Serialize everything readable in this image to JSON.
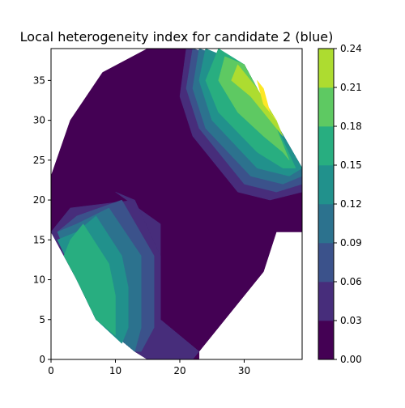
{
  "chart_data": {
    "type": "heatmap",
    "title": "Local heterogeneity index for candidate 2 (blue)",
    "xlabel": "",
    "ylabel": "",
    "xlim": [
      0,
      39
    ],
    "ylim": [
      0,
      39
    ],
    "x_ticks": [
      0,
      10,
      20,
      30
    ],
    "y_ticks": [
      0,
      5,
      10,
      15,
      20,
      25,
      30,
      35
    ],
    "grid": false,
    "colorbar": {
      "levels": [
        0.0,
        0.03,
        0.06,
        0.09,
        0.12,
        0.15,
        0.18,
        0.21,
        0.24
      ],
      "tick_labels": [
        "0.00",
        "0.03",
        "0.06",
        "0.09",
        "0.12",
        "0.15",
        "0.18",
        "0.21",
        "0.24"
      ],
      "colors": [
        "#440154",
        "#472d7b",
        "#3b528b",
        "#2c728e",
        "#21918c",
        "#28ae80",
        "#5ec962",
        "#addc30",
        "#fde725"
      ]
    },
    "domain_outline": [
      [
        15,
        0
      ],
      [
        23,
        0
      ],
      [
        23,
        1
      ],
      [
        33,
        11
      ],
      [
        35,
        16
      ],
      [
        39,
        16
      ],
      [
        39,
        24
      ],
      [
        34,
        31
      ],
      [
        30,
        37
      ],
      [
        22,
        39
      ],
      [
        15,
        39
      ],
      [
        8,
        36
      ],
      [
        3,
        30
      ],
      [
        0,
        23
      ],
      [
        0,
        16
      ],
      [
        4,
        10
      ],
      [
        7,
        5
      ],
      [
        13,
        1
      ]
    ],
    "regions": [
      {
        "level": 1,
        "points": [
          [
            10,
            21
          ],
          [
            17,
            17
          ],
          [
            17,
            10
          ],
          [
            17,
            4
          ],
          [
            16,
            0
          ],
          [
            21,
            0
          ],
          [
            23,
            1
          ],
          [
            17,
            5
          ],
          [
            17,
            10
          ],
          [
            17,
            13
          ],
          [
            13,
            20
          ]
        ]
      },
      {
        "level": 1,
        "points": [
          [
            13,
            20
          ],
          [
            17,
            13
          ],
          [
            17,
            10
          ],
          [
            17,
            5
          ],
          [
            23,
            1
          ],
          [
            22,
            0
          ],
          [
            15,
            0
          ],
          [
            13,
            1
          ],
          [
            7,
            5
          ],
          [
            4,
            10
          ],
          [
            0,
            16
          ],
          [
            1,
            17
          ],
          [
            3,
            19
          ]
        ]
      },
      {
        "level": 2,
        "points": [
          [
            11,
            20
          ],
          [
            16,
            13
          ],
          [
            16,
            9
          ],
          [
            16,
            4
          ],
          [
            14,
            1
          ],
          [
            13,
            1
          ],
          [
            7,
            5
          ],
          [
            4,
            10
          ],
          [
            1,
            16
          ],
          [
            4,
            18
          ]
        ]
      },
      {
        "level": 3,
        "points": [
          [
            9,
            19
          ],
          [
            14,
            13
          ],
          [
            14,
            9
          ],
          [
            14,
            4
          ],
          [
            13,
            1
          ],
          [
            7,
            5
          ],
          [
            4,
            10
          ],
          [
            1,
            16
          ],
          [
            4,
            17
          ]
        ]
      },
      {
        "level": 4,
        "points": [
          [
            7,
            18
          ],
          [
            11,
            13
          ],
          [
            12,
            9
          ],
          [
            12,
            4
          ],
          [
            11,
            2
          ],
          [
            7,
            5
          ],
          [
            4,
            10
          ],
          [
            1,
            15
          ],
          [
            4,
            16
          ]
        ]
      },
      {
        "level": 5,
        "points": [
          [
            5,
            17
          ],
          [
            9,
            12
          ],
          [
            10,
            8
          ],
          [
            10,
            3
          ],
          [
            7,
            5
          ],
          [
            4,
            10
          ],
          [
            2,
            13
          ],
          [
            3,
            15
          ]
        ]
      },
      {
        "level": 1,
        "points": [
          [
            21,
            39
          ],
          [
            20,
            33
          ],
          [
            22,
            28
          ],
          [
            29,
            21
          ],
          [
            34,
            20
          ],
          [
            39,
            21
          ],
          [
            39,
            24
          ],
          [
            34,
            31
          ],
          [
            30,
            37
          ],
          [
            22,
            39
          ]
        ]
      },
      {
        "level": 2,
        "points": [
          [
            22,
            39
          ],
          [
            21,
            34
          ],
          [
            23,
            29
          ],
          [
            30,
            22
          ],
          [
            35,
            21
          ],
          [
            39,
            22
          ],
          [
            39,
            24
          ],
          [
            34,
            31
          ],
          [
            30,
            37
          ]
        ]
      },
      {
        "level": 3,
        "points": [
          [
            23,
            39
          ],
          [
            22,
            34
          ],
          [
            24,
            29
          ],
          [
            31,
            23
          ],
          [
            36,
            22
          ],
          [
            39,
            23
          ],
          [
            39,
            24
          ],
          [
            34,
            31
          ],
          [
            30,
            37
          ]
        ]
      },
      {
        "level": 4,
        "points": [
          [
            24,
            39
          ],
          [
            23,
            35
          ],
          [
            25,
            30
          ],
          [
            32,
            24
          ],
          [
            37,
            23
          ],
          [
            39,
            24
          ],
          [
            34,
            31
          ],
          [
            30,
            37
          ]
        ]
      },
      {
        "level": 5,
        "points": [
          [
            26,
            39
          ],
          [
            24,
            35
          ],
          [
            26,
            31
          ],
          [
            32,
            26
          ],
          [
            36,
            24
          ],
          [
            38,
            24
          ],
          [
            34,
            31
          ],
          [
            30,
            37
          ]
        ]
      },
      {
        "level": 6,
        "points": [
          [
            27,
            38
          ],
          [
            26,
            35
          ],
          [
            29,
            31
          ],
          [
            33,
            28
          ],
          [
            36,
            26
          ],
          [
            37,
            25
          ],
          [
            34,
            31
          ],
          [
            30,
            37
          ]
        ]
      },
      {
        "level": 7,
        "points": [
          [
            29,
            37
          ],
          [
            28,
            35
          ],
          [
            31,
            33
          ],
          [
            34,
            30
          ],
          [
            36,
            28
          ],
          [
            35,
            30
          ],
          [
            32,
            34
          ]
        ]
      },
      {
        "level": 8,
        "points": [
          [
            32,
            35
          ],
          [
            33,
            32
          ],
          [
            35,
            30
          ],
          [
            34,
            31
          ],
          [
            33,
            34
          ]
        ]
      }
    ]
  }
}
